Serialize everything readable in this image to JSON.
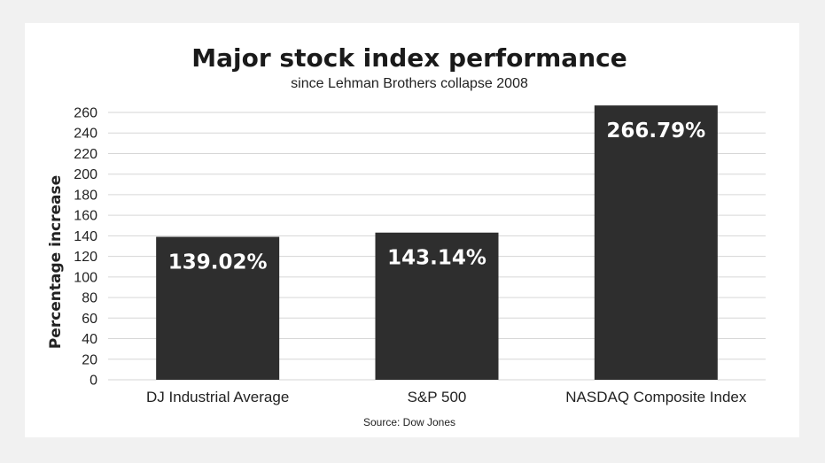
{
  "chart_data": {
    "type": "bar",
    "title": "Major stock index performance",
    "subtitle": "since Lehman Brothers collapse 2008",
    "ylabel": "Percentage increase",
    "xlabel": "",
    "categories": [
      "DJ Industrial Average",
      "S&P 500",
      "NASDAQ Composite Index"
    ],
    "values": [
      139.02,
      143.14,
      266.79
    ],
    "value_labels": [
      "139.02%",
      "143.14%",
      "266.79%"
    ],
    "ylim": [
      0,
      260
    ],
    "yticks": [
      0,
      20,
      40,
      60,
      80,
      100,
      120,
      140,
      160,
      180,
      200,
      220,
      240,
      260
    ],
    "grid": true,
    "legend": "none",
    "bar_color": "#2e2e2e",
    "source": "Source: Dow Jones"
  }
}
